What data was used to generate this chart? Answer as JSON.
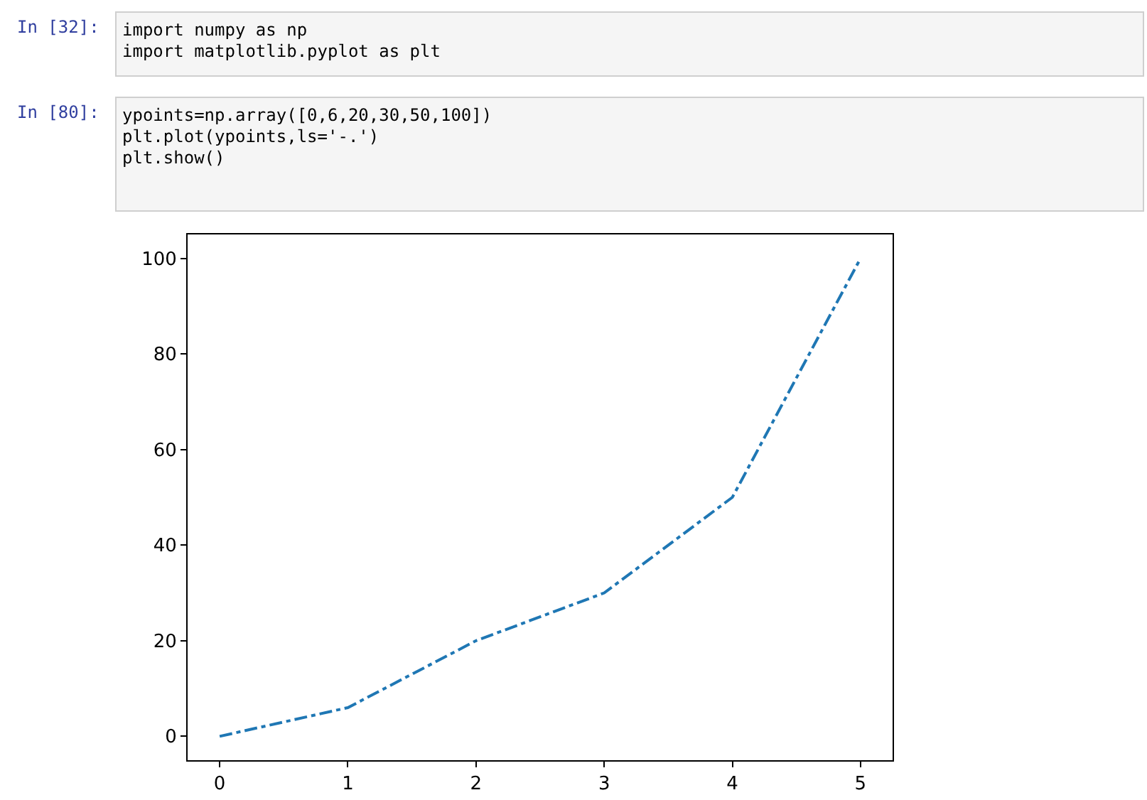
{
  "chart_data": {
    "type": "line",
    "annotations": [
      "In [32]:",
      "import numpy as np\nimport matplotlib.pyplot as plt",
      "In [80]:",
      "ypoints=np.array([0,6,20,30,50,100])\nplt.plot(ypoints,ls='-.')\nplt.show()"
    ],
    "x": [
      0,
      1,
      2,
      3,
      4,
      5
    ],
    "series": [
      {
        "color": "#1f77b4",
        "values": [
          0,
          6,
          20,
          30,
          50,
          100
        ]
      }
    ],
    "xlim": [
      -0.25,
      5.25
    ],
    "xticks": [
      0,
      1,
      2,
      3,
      4,
      5
    ],
    "ylim": [
      -5,
      105
    ],
    "yticks": [
      0,
      20,
      40,
      60,
      80,
      100
    ],
    "grid": false,
    "legend": false,
    "marker": "none",
    "line_style": "dashdot"
  }
}
